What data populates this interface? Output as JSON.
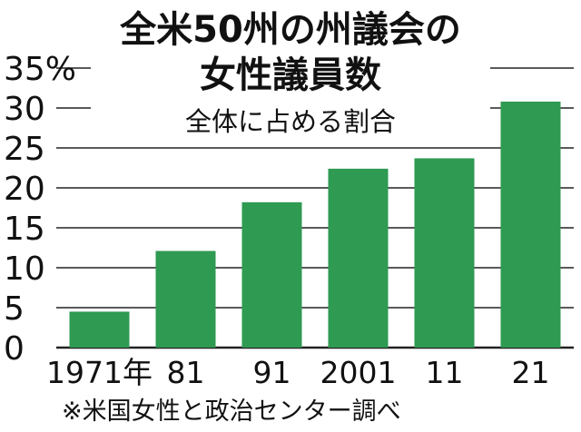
{
  "chart_data": {
    "type": "bar",
    "title_line1": "全米50州の州議会の",
    "title_line2": "女性議員数",
    "subtitle": "全体に占める割合",
    "categories": [
      "1971年",
      "81",
      "91",
      "2001",
      "11",
      "21"
    ],
    "values": [
      4.5,
      12.1,
      18.2,
      22.4,
      23.7,
      30.8
    ],
    "ylim": [
      0,
      35
    ],
    "yticks": [
      0,
      5,
      10,
      15,
      20,
      25,
      30,
      35
    ],
    "ytick_labels": [
      "0",
      "5",
      "10",
      "15",
      "20",
      "25",
      "30",
      "35%"
    ],
    "grid": true,
    "source": "※米国女性と政治センター調べ",
    "colors": {
      "bar": "#2e9a52",
      "grid": "#222222",
      "text": "#111111"
    }
  }
}
